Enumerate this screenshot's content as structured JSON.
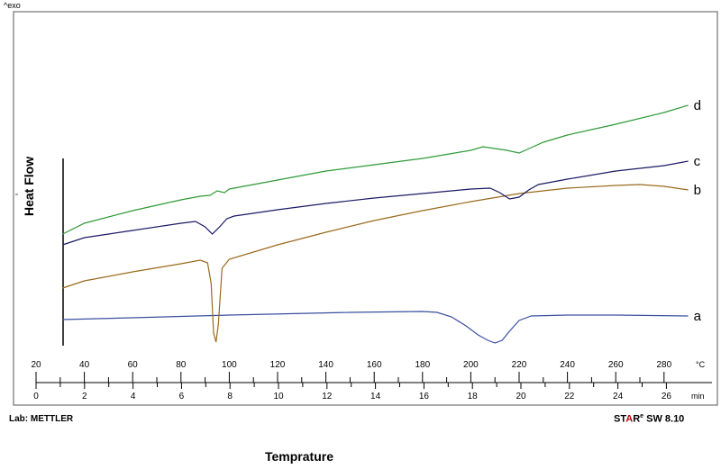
{
  "chart_data": {
    "type": "line",
    "title": "",
    "top_label": "^exo",
    "ylabel": "Heat Flow",
    "xlabel": "Temprature",
    "x_top_axis": {
      "unit": "°C",
      "min": 20,
      "max": 290,
      "ticks": [
        20,
        40,
        60,
        80,
        100,
        120,
        140,
        160,
        180,
        200,
        220,
        240,
        260,
        280
      ]
    },
    "x_bottom_axis": {
      "unit": "min",
      "min": 0,
      "max": 27,
      "ticks": [
        0,
        2,
        4,
        6,
        8,
        10,
        12,
        14,
        16,
        18,
        20,
        22,
        24,
        26
      ]
    },
    "footer_left": "Lab: METTLER",
    "footer_right": {
      "prefix": "ST",
      "accent": "A",
      "suffix": "R",
      "super": "e",
      "version": " SW 8.10"
    },
    "grid": false,
    "series": [
      {
        "name": "a",
        "color": "#3a4fa0",
        "x": [
          31,
          60,
          100,
          150,
          180,
          186,
          192,
          198,
          203,
          207,
          210,
          213,
          216,
          220,
          225,
          240,
          260,
          290
        ],
        "y": [
          355,
          353,
          350,
          347,
          346,
          347,
          352,
          362,
          372,
          378,
          381,
          378,
          368,
          356,
          351,
          350,
          350,
          351
        ]
      },
      {
        "name": "b",
        "color": "#9a6a1c",
        "x": [
          31,
          40,
          60,
          80,
          88,
          91,
          92.5,
          93.5,
          94.5,
          95.5,
          97,
          100,
          120,
          140,
          160,
          180,
          200,
          220,
          240,
          260,
          270,
          280,
          290
        ],
        "y": [
          320,
          312,
          302,
          293,
          289,
          292,
          315,
          370,
          380,
          360,
          298,
          288,
          272,
          258,
          245,
          234,
          224,
          215,
          209,
          206,
          205,
          207,
          211
        ]
      },
      {
        "name": "c",
        "color": "#1a1a66",
        "x": [
          31,
          40,
          60,
          80,
          86,
          90,
          93,
          96,
          99,
          102,
          120,
          140,
          160,
          180,
          200,
          208,
          212,
          216,
          220,
          224,
          228,
          240,
          260,
          280,
          290
        ],
        "y": [
          272,
          264,
          256,
          248,
          246,
          252,
          260,
          252,
          243,
          240,
          233,
          226,
          220,
          215,
          210,
          209,
          214,
          221,
          219,
          211,
          205,
          199,
          190,
          184,
          179
        ]
      },
      {
        "name": "d",
        "color": "#2f9a38",
        "x": [
          31,
          40,
          60,
          80,
          88,
          92,
          95,
          98,
          100,
          120,
          140,
          160,
          180,
          200,
          205,
          210,
          215,
          220,
          225,
          230,
          240,
          260,
          280,
          290
        ],
        "y": [
          260,
          248,
          234,
          222,
          218,
          217,
          212,
          214,
          210,
          200,
          190,
          183,
          176,
          167,
          163,
          165,
          167,
          170,
          164,
          158,
          150,
          138,
          125,
          117
        ]
      }
    ]
  }
}
